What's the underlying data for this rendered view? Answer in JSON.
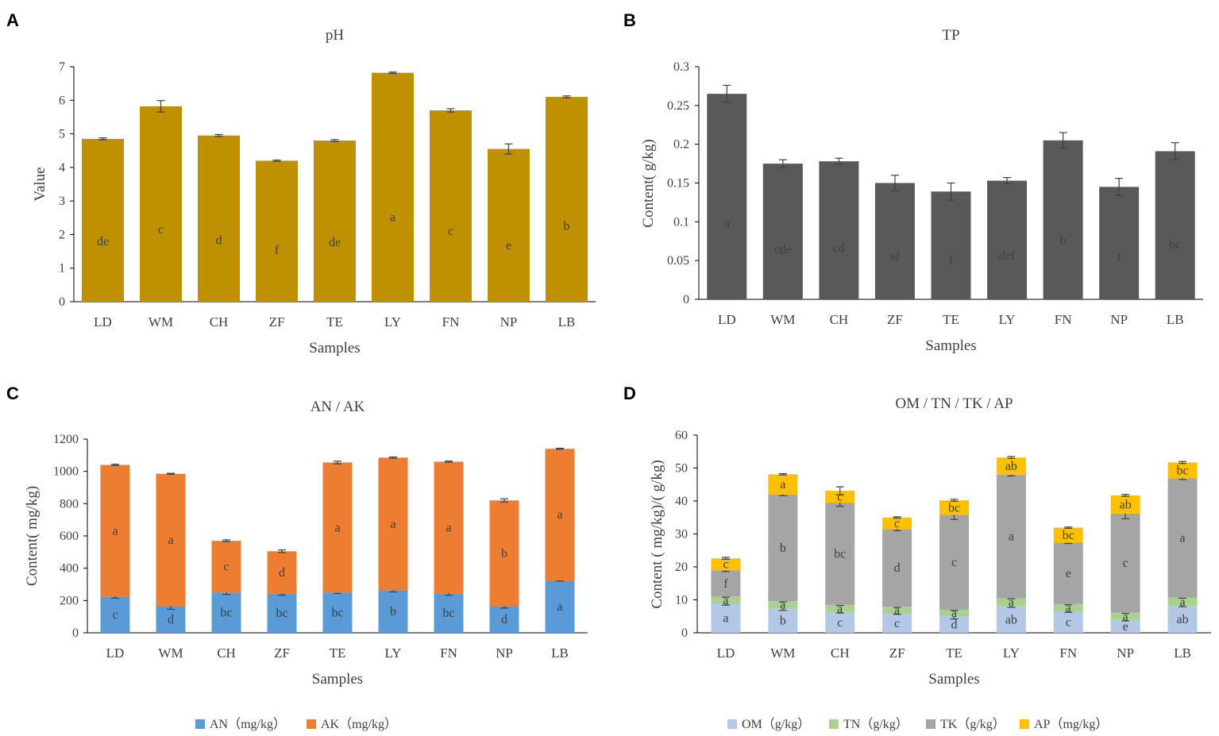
{
  "panel_letters": {
    "A": "A",
    "B": "B",
    "C": "C",
    "D": "D"
  },
  "colors": {
    "ph": "#bf9000",
    "tp": "#595959",
    "an": "#5b9bd5",
    "ak": "#ed7d31",
    "om": "#b4c7e7",
    "tn": "#a9d18e",
    "tk": "#a5a5a5",
    "ap": "#ffc000"
  },
  "chart_data": [
    {
      "id": "A",
      "type": "bar",
      "title": "pH",
      "xlabel": "Samples",
      "ylabel": "Value",
      "ylim": [
        0,
        7
      ],
      "yticks": [
        "0",
        "1",
        "2",
        "3",
        "4",
        "5",
        "6",
        "7"
      ],
      "categories": [
        "LD",
        "WM",
        "CH",
        "ZF",
        "TE",
        "LY",
        "FN",
        "NP",
        "LB"
      ],
      "series": [
        {
          "name": "pH",
          "values": [
            4.85,
            5.82,
            4.95,
            4.2,
            4.8,
            6.82,
            5.7,
            4.55,
            6.1
          ],
          "errors": [
            0.03,
            0.17,
            0.03,
            0.02,
            0.03,
            0.02,
            0.05,
            0.15,
            0.03
          ],
          "letters": [
            "de",
            "c",
            "d",
            "f",
            "de",
            "a",
            "c",
            "e",
            "b"
          ]
        }
      ]
    },
    {
      "id": "B",
      "type": "bar",
      "title": "TP",
      "xlabel": "Samples",
      "ylabel": "Content( g/kg)",
      "ylim": [
        0,
        0.3
      ],
      "yticks": [
        "0",
        "0.05",
        "0.1",
        "0.15",
        "0.2",
        "0.25",
        "0.3"
      ],
      "categories": [
        "LD",
        "WM",
        "CH",
        "ZF",
        "TE",
        "LY",
        "FN",
        "NP",
        "LB"
      ],
      "series": [
        {
          "name": "TP",
          "values": [
            0.265,
            0.175,
            0.178,
            0.15,
            0.139,
            0.153,
            0.205,
            0.145,
            0.191
          ],
          "errors": [
            0.011,
            0.005,
            0.004,
            0.01,
            0.011,
            0.004,
            0.01,
            0.011,
            0.011
          ],
          "letters": [
            "a",
            "cde",
            "cd",
            "ef",
            "f",
            "def",
            "b",
            "f",
            "bc"
          ]
        }
      ]
    },
    {
      "id": "C",
      "type": "stacked-bar",
      "title": "AN / AK",
      "xlabel": "Samples",
      "ylabel": "Content( mg/kg)",
      "ylim": [
        0,
        1200
      ],
      "yticks": [
        "0",
        "200",
        "400",
        "600",
        "800",
        "1000",
        "1200"
      ],
      "categories": [
        "LD",
        "WM",
        "CH",
        "ZF",
        "TE",
        "LY",
        "FN",
        "NP",
        "LB"
      ],
      "series": [
        {
          "name": "AN（mg/kg）",
          "color_key": "an",
          "values": [
            225,
            165,
            250,
            245,
            250,
            265,
            245,
            165,
            325
          ],
          "errors": [
            10,
            20,
            12,
            12,
            6,
            12,
            12,
            12,
            5
          ],
          "letters": [
            "c",
            "d",
            "bc",
            "bc",
            "bc",
            "b",
            "bc",
            "d",
            "a"
          ]
        },
        {
          "name": "AK（mg/kg）",
          "color_key": "ak",
          "values": [
            815,
            820,
            320,
            260,
            805,
            820,
            815,
            655,
            815
          ],
          "errors": [
            4,
            3,
            6,
            8,
            8,
            4,
            4,
            10,
            3
          ],
          "letters": [
            "a",
            "a",
            "c",
            "d",
            "a",
            "a",
            "a",
            "b",
            "a"
          ]
        }
      ]
    },
    {
      "id": "D",
      "type": "stacked-bar",
      "title": "OM / TN / TK / AP",
      "xlabel": "Samples",
      "ylabel": "Content ( mg/kg)/( g/kg)",
      "ylim": [
        0,
        60
      ],
      "yticks": [
        "0",
        "10",
        "20",
        "30",
        "40",
        "50",
        "60"
      ],
      "categories": [
        "LD",
        "WM",
        "CH",
        "ZF",
        "TE",
        "LY",
        "FN",
        "NP",
        "LB"
      ],
      "series": [
        {
          "name": "OM（g/kg）",
          "color_key": "om",
          "values": [
            8.8,
            7.4,
            6.3,
            5.9,
            5.0,
            8.0,
            6.5,
            3.9,
            8.2
          ],
          "errors": [
            0.4,
            0.6,
            0.3,
            0.3,
            0.8,
            0.3,
            0.3,
            0.3,
            0.3
          ],
          "letters": [
            "a",
            "b",
            "c",
            "c",
            "d",
            "ab",
            "c",
            "e",
            "ab"
          ]
        },
        {
          "name": "TN（g/kg）",
          "color_key": "tn",
          "values": [
            2.2,
            2.2,
            2.2,
            2.0,
            2.0,
            2.5,
            2.2,
            2.2,
            2.5
          ],
          "errors": [
            0.2,
            0.2,
            0.2,
            0.2,
            0.2,
            0.2,
            0.2,
            0.2,
            0.2
          ],
          "letters": [
            "a",
            "a",
            "a",
            "a",
            "a",
            "a",
            "a",
            "a",
            "a"
          ]
        },
        {
          "name": "TK（g/kg）",
          "color_key": "tk",
          "values": [
            8.0,
            32.4,
            31.0,
            23.6,
            28.8,
            37.5,
            18.7,
            30.1,
            36.2
          ],
          "errors": [
            0.4,
            0.4,
            1.1,
            0.5,
            1.4,
            0.4,
            0.3,
            1.6,
            0.4
          ],
          "letters": [
            "f",
            "b",
            "bc",
            "d",
            "c",
            "a",
            "e",
            "c",
            "a"
          ]
        },
        {
          "name": "AP（mg/kg）",
          "color_key": "ap",
          "values": [
            3.6,
            6.1,
            3.6,
            3.5,
            4.4,
            5.2,
            4.5,
            5.5,
            4.8
          ],
          "errors": [
            0.3,
            0.2,
            1.2,
            0.2,
            0.3,
            0.3,
            0.2,
            0.3,
            0.3
          ],
          "letters": [
            "c",
            "a",
            "c",
            "c",
            "bc",
            "ab",
            "bc",
            "ab",
            "bc"
          ]
        }
      ]
    }
  ]
}
